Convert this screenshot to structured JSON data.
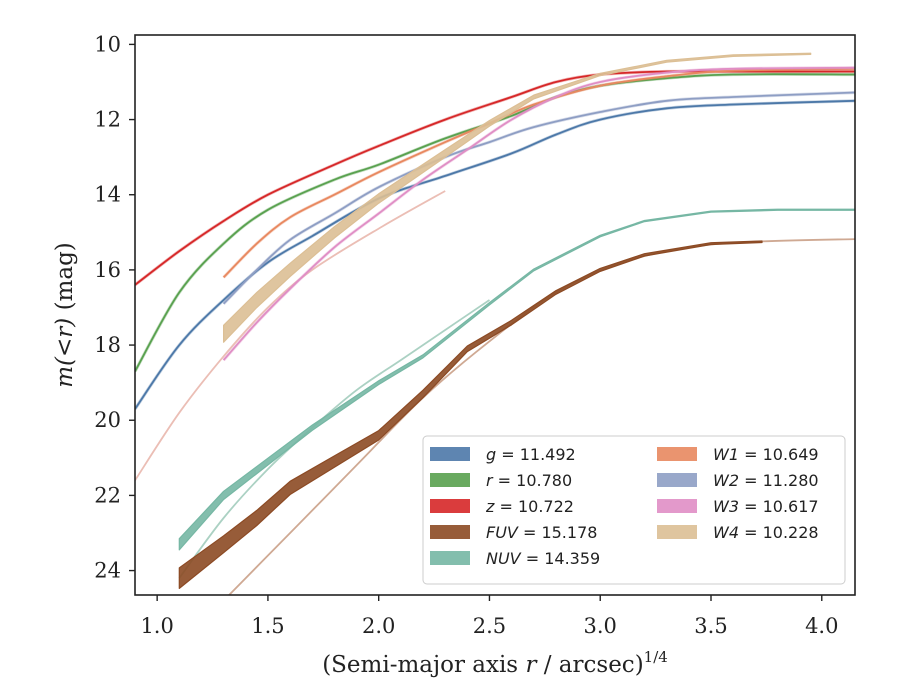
{
  "chart_data": {
    "type": "line",
    "xlabel_main": "(Semi-major axis ",
    "xlabel_var": "r",
    "xlabel_tail": " / arcsec)",
    "xlabel_exp": "1/4",
    "ylabel_main": "m(<r)",
    "ylabel_unit": " (mag)",
    "xlim": [
      0.9,
      4.15
    ],
    "ylim": [
      24.65,
      9.75
    ],
    "y_inverted": true,
    "xticks": [
      1.0,
      1.5,
      2.0,
      2.5,
      3.0,
      3.5,
      4.0
    ],
    "xtick_labels": [
      "1.0",
      "1.5",
      "2.0",
      "2.5",
      "3.0",
      "3.5",
      "4.0"
    ],
    "yticks": [
      10,
      12,
      14,
      16,
      18,
      20,
      22,
      24
    ],
    "ytick_labels": [
      "10",
      "12",
      "14",
      "16",
      "18",
      "20",
      "22",
      "24"
    ],
    "grid": false,
    "legend_position": "lower-right",
    "series": [
      {
        "name": "g = 11.492",
        "var": "g",
        "val": "11.492",
        "color": "#4c78a8",
        "kind": "line",
        "x": [
          0.9,
          1.1,
          1.3,
          1.5,
          1.7,
          2.0,
          2.3,
          2.6,
          2.8,
          3.0,
          3.3,
          3.6,
          4.15
        ],
        "y": [
          19.7,
          18.0,
          16.8,
          15.8,
          15.1,
          14.1,
          13.5,
          12.9,
          12.4,
          12.0,
          11.7,
          11.6,
          11.5
        ]
      },
      {
        "name": "r = 10.780",
        "var": "r",
        "val": "10.780",
        "color": "#59a14f",
        "kind": "line",
        "x": [
          0.9,
          1.1,
          1.3,
          1.5,
          1.8,
          2.0,
          2.3,
          2.6,
          2.8,
          3.0,
          3.3,
          3.6,
          4.15
        ],
        "y": [
          18.7,
          16.6,
          15.3,
          14.4,
          13.6,
          13.2,
          12.5,
          11.9,
          11.4,
          11.1,
          10.9,
          10.8,
          10.8
        ]
      },
      {
        "name": "z = 10.722",
        "var": "z",
        "val": "10.722",
        "color": "#d62728",
        "kind": "line",
        "x": [
          0.9,
          1.1,
          1.3,
          1.5,
          1.8,
          2.0,
          2.3,
          2.6,
          2.8,
          3.0,
          3.3,
          3.6,
          4.15
        ],
        "y": [
          16.4,
          15.5,
          14.7,
          14.0,
          13.2,
          12.7,
          12.0,
          11.4,
          11.0,
          10.8,
          10.72,
          10.72,
          10.72
        ]
      },
      {
        "name": "FUV = 15.178",
        "var": "FUV",
        "val": "15.178",
        "color": "#8c4a24",
        "kind": "band",
        "x": [
          1.1,
          1.3,
          1.45,
          1.6,
          1.8,
          2.0,
          2.2,
          2.4,
          2.6,
          2.8,
          3.0,
          3.2,
          3.5,
          3.73
        ],
        "y": [
          24.2,
          23.3,
          22.6,
          21.8,
          21.1,
          20.4,
          19.3,
          18.1,
          17.4,
          16.6,
          16.0,
          15.6,
          15.3,
          15.25
        ],
        "w": [
          0.55,
          0.45,
          0.4,
          0.35,
          0.3,
          0.25,
          0.2,
          0.15,
          0.12,
          0.1,
          0.08,
          0.06,
          0.05,
          0.04
        ]
      },
      {
        "name": "NUV = 14.359",
        "var": "NUV",
        "val": "14.359",
        "color": "#76b7a4",
        "kind": "band",
        "x": [
          1.1,
          1.3,
          1.5,
          1.7,
          2.0,
          2.2,
          2.5,
          2.7,
          3.0,
          3.2,
          3.5,
          3.8,
          4.15
        ],
        "y": [
          23.3,
          22.0,
          21.1,
          20.2,
          19.0,
          18.3,
          16.9,
          16.0,
          15.1,
          14.7,
          14.45,
          14.4,
          14.4
        ],
        "w": [
          0.3,
          0.22,
          0.18,
          0.14,
          0.1,
          0.08,
          0.06,
          0.05,
          0.04,
          0.03,
          0.03,
          0.03,
          0.03
        ]
      },
      {
        "name": "W1 = 10.649",
        "var": "W1",
        "val": "10.649",
        "color": "#e8885f",
        "kind": "line",
        "x": [
          1.3,
          1.45,
          1.6,
          1.8,
          2.0,
          2.3,
          2.5,
          2.7,
          3.0,
          3.3,
          3.6,
          4.15
        ],
        "y": [
          16.2,
          15.3,
          14.6,
          14.0,
          13.4,
          12.6,
          12.1,
          11.6,
          11.1,
          10.85,
          10.7,
          10.65
        ]
      },
      {
        "name": "W2 = 11.280",
        "var": "W2",
        "val": "11.280",
        "color": "#8e9ec4",
        "kind": "line",
        "x": [
          1.3,
          1.45,
          1.6,
          1.8,
          2.0,
          2.3,
          2.5,
          2.7,
          3.0,
          3.3,
          3.6,
          4.15
        ],
        "y": [
          16.9,
          16.0,
          15.2,
          14.5,
          13.8,
          13.0,
          12.6,
          12.2,
          11.8,
          11.5,
          11.4,
          11.28
        ]
      },
      {
        "name": "W3 = 10.617",
        "var": "W3",
        "val": "10.617",
        "color": "#e08ec5",
        "kind": "line",
        "x": [
          1.3,
          1.45,
          1.6,
          1.8,
          2.0,
          2.2,
          2.4,
          2.6,
          2.8,
          3.0,
          3.3,
          3.6,
          4.15
        ],
        "y": [
          18.4,
          17.4,
          16.5,
          15.4,
          14.5,
          13.6,
          12.8,
          12.0,
          11.4,
          11.0,
          10.75,
          10.65,
          10.62
        ]
      },
      {
        "name": "W4 = 10.228",
        "var": "W4",
        "val": "10.228",
        "color": "#dcbf95",
        "kind": "band",
        "x": [
          1.3,
          1.45,
          1.6,
          1.8,
          2.0,
          2.3,
          2.5,
          2.7,
          3.0,
          3.3,
          3.6,
          3.95
        ],
        "y": [
          17.7,
          16.8,
          16.0,
          15.0,
          14.1,
          12.9,
          12.1,
          11.4,
          10.8,
          10.45,
          10.3,
          10.25
        ],
        "w": [
          0.45,
          0.4,
          0.35,
          0.3,
          0.25,
          0.2,
          0.15,
          0.1,
          0.06,
          0.05,
          0.04,
          0.03
        ]
      }
    ],
    "faint_traces": [
      {
        "color": "#e8b3a8",
        "x": [
          0.9,
          1.1,
          1.3,
          1.5,
          1.7,
          2.0,
          2.3
        ],
        "y": [
          21.6,
          19.8,
          18.3,
          17.0,
          16.0,
          14.9,
          13.9
        ]
      },
      {
        "color": "#9cc9b9",
        "x": [
          1.1,
          1.3,
          1.5,
          1.7,
          1.9,
          2.1,
          2.3,
          2.5
        ],
        "y": [
          24.2,
          22.6,
          21.3,
          20.2,
          19.2,
          18.4,
          17.6,
          16.8
        ]
      },
      {
        "color": "#c79a80",
        "x": [
          1.3,
          1.6,
          1.9,
          2.2,
          2.5,
          2.8,
          3.1,
          3.4,
          3.7,
          4.15
        ],
        "y": [
          24.8,
          23.0,
          21.2,
          19.4,
          17.9,
          16.6,
          15.8,
          15.4,
          15.25,
          15.18
        ]
      }
    ]
  }
}
